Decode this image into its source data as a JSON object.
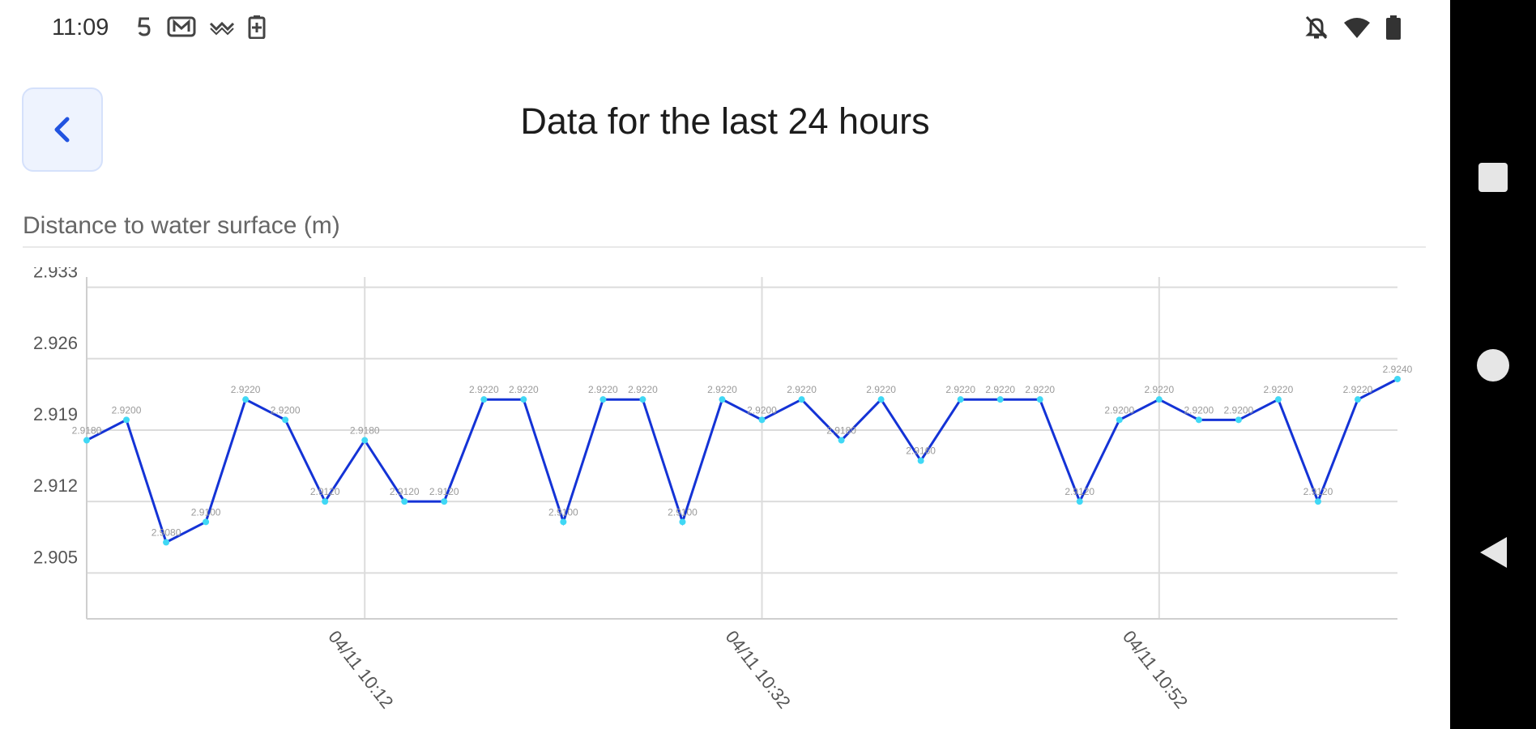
{
  "status_bar": {
    "time": "11:09",
    "left_icons": [
      "s-notification-icon",
      "m-notification-icon",
      "signal-wave-icon",
      "battery-saver-icon"
    ],
    "right_icons": [
      "notifications-off-icon",
      "wifi-icon",
      "battery-icon"
    ]
  },
  "header": {
    "back_icon": "chevron-left-icon",
    "title": "Data for the last 24 hours"
  },
  "chart_label": "Distance to water surface (m)",
  "colors": {
    "line": "#1433d6",
    "points": "#40d8f5",
    "grid": "#dcdcdc",
    "back_button_bg": "#eef3fe"
  },
  "chart_data": {
    "type": "line",
    "title": "",
    "xlabel": "",
    "ylabel": "Distance to water surface (m)",
    "ylim": [
      2.9005,
      2.934
    ],
    "yticks": [
      "2.905",
      "2.912",
      "2.919",
      "2.926",
      "2.933"
    ],
    "xticks": [
      "04/11 10:12",
      "04/11 10:32",
      "04/11 10:52"
    ],
    "grid": true,
    "series": [
      {
        "values": [
          2.918,
          2.92,
          2.908,
          2.91,
          2.922,
          2.92,
          2.912,
          2.918,
          2.912,
          2.912,
          2.922,
          2.922,
          2.91,
          2.922,
          2.922,
          2.91,
          2.922,
          2.92,
          2.922,
          2.918,
          2.922,
          2.916,
          2.922,
          2.922,
          2.922,
          2.912,
          2.92,
          2.922,
          2.92,
          2.92,
          2.922,
          2.912,
          2.922,
          2.924
        ],
        "labels": [
          "2.9180",
          "2.9200",
          "2.9080",
          "2.9100",
          "2.9220",
          "2.9200",
          "2.9120",
          "2.9180",
          "2.9120",
          "2.9120",
          "2.9220",
          "2.9220",
          "2.9100",
          "2.9220",
          "2.9220",
          "2.9100",
          "2.9220",
          "2.9200",
          "2.9220",
          "2.9180",
          "2.9220",
          "2.9160",
          "2.9220",
          "2.9220",
          "2.9220",
          "2.9120",
          "2.9200",
          "2.9220",
          "2.9200",
          "2.9200",
          "2.9220",
          "2.9120",
          "2.9220",
          "2.9240"
        ]
      }
    ]
  },
  "navigation": {
    "recents_icon": "square-recents-icon",
    "home_icon": "circle-home-icon",
    "back_icon": "triangle-back-icon"
  }
}
